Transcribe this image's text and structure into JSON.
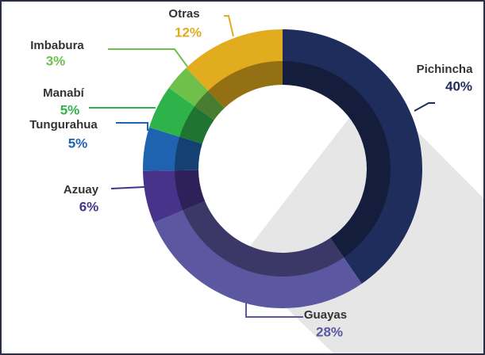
{
  "chart_data": {
    "type": "donut",
    "categories": [
      "Pichincha",
      "Guayas",
      "Azuay",
      "Tungurahua",
      "Manabí",
      "Imbabura",
      "Otras"
    ],
    "values": [
      40,
      28,
      6,
      5,
      5,
      3,
      12
    ],
    "value_labels": [
      "40%",
      "28%",
      "6%",
      "5%",
      "5%",
      "3%",
      "12%"
    ],
    "colors": [
      "#1f2d5c",
      "#5b57a0",
      "#47338a",
      "#1f63b0",
      "#2eb34a",
      "#6fc04a",
      "#e2ac1f"
    ]
  }
}
